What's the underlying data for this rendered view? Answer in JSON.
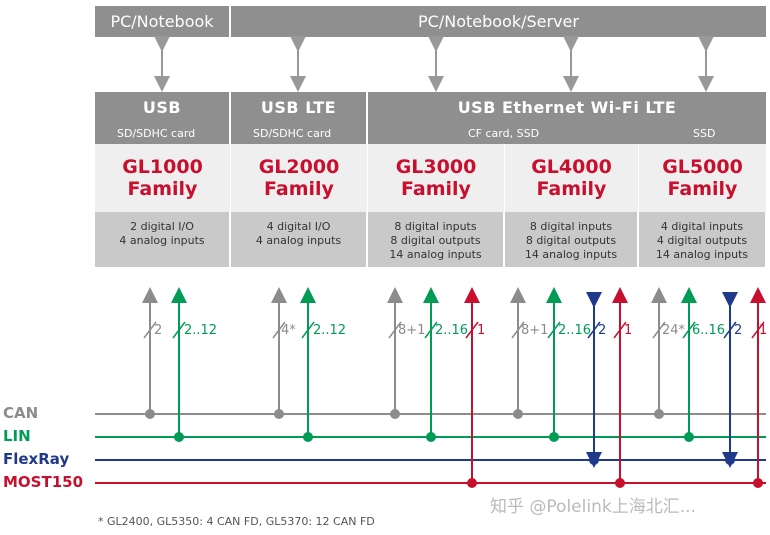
{
  "hosts": {
    "left": "PC/Notebook",
    "right": "PC/Notebook/Server"
  },
  "interfaces": {
    "usb": "USB",
    "usb_lte": "USB LTE",
    "usb_eth": "USB Ethernet Wi-Fi LTE",
    "sub_gl1000": "SD/SDHC card",
    "sub_gl2000": "SD/SDHC card",
    "sub_cf": "CF card, SSD",
    "sub_ssd": "SSD"
  },
  "families": [
    {
      "name": "GL1000",
      "family": "Family",
      "io": [
        "2 digital I/O",
        "4 analog inputs"
      ]
    },
    {
      "name": "GL2000",
      "family": "Family",
      "io": [
        "4 digital I/O",
        "4 analog inputs"
      ]
    },
    {
      "name": "GL3000",
      "family": "Family",
      "io": [
        "8 digital inputs",
        "8 digital outputs",
        "14 analog inputs"
      ]
    },
    {
      "name": "GL4000",
      "family": "Family",
      "io": [
        "8 digital inputs",
        "8 digital outputs",
        "14 analog inputs"
      ]
    },
    {
      "name": "GL5000",
      "family": "Family",
      "io": [
        "4 digital inputs",
        "4 digital outputs",
        "14 analog inputs"
      ]
    }
  ],
  "channels": {
    "gl1000_can": "2",
    "gl1000_lin": "2..12",
    "gl2000_can": "4*",
    "gl2000_lin": "2..12",
    "gl3000_can": "8+1",
    "gl3000_lin": "2..16",
    "gl3000_most": "1",
    "gl4000_can": "8+1",
    "gl4000_lin": "2..16",
    "gl4000_flexray": "2",
    "gl4000_most": "1",
    "gl5000_can": "24*",
    "gl5000_lin": "6..16",
    "gl5000_flexray": "2",
    "gl5000_most": "1"
  },
  "buses": {
    "can": "CAN",
    "lin": "LIN",
    "flexray": "FlexRay",
    "most": "MOST150"
  },
  "colors": {
    "can": "#8c8c8c",
    "lin": "#009b55",
    "flexray": "#1f3a8a",
    "most": "#c8102e",
    "header": "#8f8f8f"
  },
  "footnote": "* GL2400, GL5350: 4 CAN FD, GL5370: 12 CAN FD",
  "watermark": "知乎 @Polelink上海北汇..."
}
